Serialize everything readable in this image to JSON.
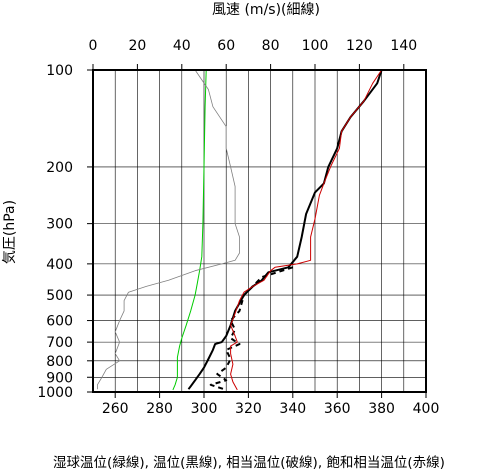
{
  "chart_data": {
    "type": "line",
    "top_axis_label": "風速 (m/s)(細線)",
    "left_axis_label": "気圧(hPa)",
    "bottom_axis_label": "湿球温位(緑線), 温位(黒線), 相当温位(破線), 飽和相当温位(赤線)",
    "bottom_axis": {
      "range": [
        250,
        400
      ],
      "ticks": [
        260,
        280,
        300,
        320,
        340,
        360,
        380,
        400
      ],
      "gridlines_every": 10
    },
    "top_axis": {
      "range": [
        0,
        150
      ],
      "ticks": [
        0,
        20,
        40,
        60,
        80,
        100,
        120,
        140
      ],
      "gridlines_every": 10
    },
    "pressure_axis": {
      "scale": "log",
      "range": [
        100,
        1000
      ],
      "ticks": [
        100,
        200,
        300,
        400,
        500,
        600,
        700,
        800,
        900,
        1000
      ]
    },
    "grid": true,
    "series": [
      {
        "color": "#00cc00",
        "dash": "solid",
        "axis": "bottom",
        "points": [
          [
            301,
            100
          ],
          [
            300.5,
            130
          ],
          [
            300,
            200
          ],
          [
            299.5,
            300
          ],
          [
            299,
            380
          ],
          [
            298,
            420
          ],
          [
            297,
            460
          ],
          [
            296,
            500
          ],
          [
            294,
            560
          ],
          [
            292,
            620
          ],
          [
            290,
            680
          ],
          [
            289,
            720
          ],
          [
            288,
            780
          ],
          [
            288,
            850
          ],
          [
            288,
            900
          ],
          [
            287,
            950
          ],
          [
            286,
            985
          ]
        ]
      },
      {
        "color": "#000000",
        "dash": "solid",
        "axis": "bottom",
        "points": [
          [
            380,
            100
          ],
          [
            378,
            110
          ],
          [
            372,
            125
          ],
          [
            366,
            140
          ],
          [
            362,
            155
          ],
          [
            360,
            175
          ],
          [
            356,
            200
          ],
          [
            354,
            225
          ],
          [
            350,
            240
          ],
          [
            346,
            280
          ],
          [
            344,
            330
          ],
          [
            342,
            380
          ],
          [
            338,
            410
          ],
          [
            329,
            425
          ],
          [
            326,
            450
          ],
          [
            322,
            470
          ],
          [
            318,
            500
          ],
          [
            314,
            560
          ],
          [
            312,
            620
          ],
          [
            310,
            670
          ],
          [
            308,
            700
          ],
          [
            305,
            710
          ],
          [
            304,
            740
          ],
          [
            302,
            790
          ],
          [
            300,
            840
          ],
          [
            298,
            880
          ],
          [
            296,
            920
          ],
          [
            294,
            960
          ],
          [
            293,
            980
          ]
        ]
      },
      {
        "color": "#000000",
        "dash": "dashed",
        "axis": "bottom",
        "points": [
          [
            340,
            410
          ],
          [
            326,
            440
          ],
          [
            318,
            500
          ],
          [
            316,
            560
          ],
          [
            312,
            600
          ],
          [
            314,
            640
          ],
          [
            312,
            680
          ],
          [
            316,
            710
          ],
          [
            310,
            740
          ],
          [
            312,
            790
          ],
          [
            310,
            840
          ],
          [
            306,
            880
          ],
          [
            310,
            920
          ],
          [
            303,
            950
          ],
          [
            310,
            985
          ]
        ]
      },
      {
        "color": "#cc0000",
        "dash": "solid",
        "axis": "bottom",
        "points": [
          [
            380,
            100
          ],
          [
            376,
            110
          ],
          [
            372,
            125
          ],
          [
            366,
            140
          ],
          [
            362,
            155
          ],
          [
            361,
            175
          ],
          [
            357,
            200
          ],
          [
            354,
            225
          ],
          [
            352,
            245
          ],
          [
            350,
            290
          ],
          [
            348,
            330
          ],
          [
            348,
            390
          ],
          [
            342,
            400
          ],
          [
            332,
            410
          ],
          [
            330,
            420
          ],
          [
            327,
            450
          ],
          [
            322,
            470
          ],
          [
            318,
            490
          ],
          [
            316,
            520
          ],
          [
            314,
            570
          ],
          [
            312,
            620
          ],
          [
            314,
            670
          ],
          [
            315,
            700
          ],
          [
            312,
            720
          ],
          [
            312,
            760
          ],
          [
            313,
            820
          ],
          [
            312,
            880
          ],
          [
            313,
            930
          ],
          [
            315,
            985
          ]
        ]
      },
      {
        "color": "#808080",
        "dash": "solid",
        "axis": "top",
        "points": [
          [
            46,
            100
          ],
          [
            52,
            115
          ],
          [
            54,
            130
          ],
          [
            60,
            150
          ],
          [
            60,
            175
          ],
          [
            62,
            200
          ],
          [
            64,
            230
          ],
          [
            64,
            260
          ],
          [
            64,
            300
          ],
          [
            66,
            330
          ],
          [
            66,
            370
          ],
          [
            64,
            390
          ],
          [
            58,
            400
          ],
          [
            46,
            420
          ],
          [
            34,
            450
          ],
          [
            24,
            470
          ],
          [
            16,
            490
          ],
          [
            14,
            520
          ],
          [
            14,
            560
          ],
          [
            12,
            600
          ],
          [
            10,
            650
          ],
          [
            12,
            700
          ],
          [
            10,
            760
          ],
          [
            12,
            800
          ],
          [
            6,
            850
          ],
          [
            4,
            900
          ],
          [
            2,
            950
          ],
          [
            2,
            980
          ]
        ]
      }
    ]
  }
}
